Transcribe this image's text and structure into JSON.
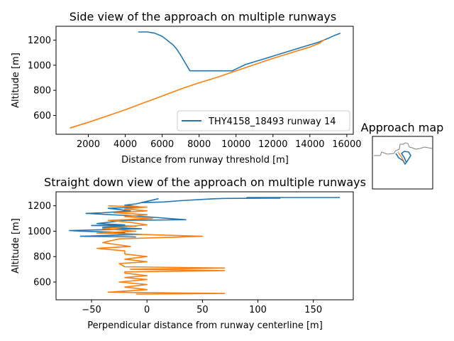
{
  "colors": {
    "series1": "#1f77b4",
    "series2": "#ff7f0e",
    "map_outline": "#7f7f7f"
  },
  "chart_data": [
    {
      "type": "line",
      "title": "Side view of the approach on multiple runways",
      "xlabel": "Distance from runway threshold [m]",
      "ylabel": "Altitude [m]",
      "xlim": [
        250,
        16350
      ],
      "ylim": [
        450,
        1310
      ],
      "xticks": [
        2000,
        4000,
        6000,
        8000,
        10000,
        12000,
        14000,
        16000
      ],
      "yticks": [
        600,
        800,
        1000,
        1200
      ],
      "legend": {
        "placement": "lower-right",
        "entries": [
          "THY4158_18493 runway 14"
        ]
      },
      "series": [
        {
          "name": "THY4158_18493 runway 14",
          "x": [
            4700,
            5200,
            5600,
            6000,
            6300,
            6600,
            6800,
            7000,
            7200,
            7400,
            7500,
            8000,
            9000,
            9800,
            10500,
            11500,
            12500,
            13500,
            14500,
            15000,
            15300,
            15650
          ],
          "y": [
            1265,
            1265,
            1255,
            1230,
            1195,
            1160,
            1125,
            1080,
            1030,
            980,
            955,
            955,
            955,
            955,
            1005,
            1050,
            1095,
            1140,
            1185,
            1215,
            1235,
            1255
          ]
        },
        {
          "name": "",
          "x": [
            1000,
            2000,
            3000,
            4000,
            5000,
            6000,
            7000,
            8000,
            9000,
            10000,
            11000,
            12000,
            13000,
            14000,
            14500,
            14800
          ],
          "y": [
            500,
            545,
            595,
            645,
            700,
            755,
            810,
            860,
            905,
            955,
            1005,
            1055,
            1100,
            1145,
            1175,
            1205
          ]
        }
      ]
    },
    {
      "type": "line",
      "title": "Straight down view of the approach on multiple runways",
      "xlabel": "Perpendicular distance from runway centerline [m]",
      "ylabel": "Altitude [m]",
      "xlim": [
        -82,
        186
      ],
      "ylim": [
        460,
        1310
      ],
      "xticks": [
        -50,
        0,
        50,
        100,
        150
      ],
      "yticks": [
        600,
        800,
        1000,
        1200
      ],
      "series": [
        {
          "name": "THY4158_18493 runway 14",
          "x": [
            174,
            90,
            120,
            70,
            60,
            50,
            30,
            15,
            -5,
            10,
            -10,
            -20,
            -5,
            -35,
            -15,
            -40,
            -55,
            -10,
            35,
            -20,
            -30,
            -45,
            -20,
            -50,
            -10,
            -40,
            -5,
            -25,
            -70,
            -60,
            -20,
            -30,
            -5,
            -60,
            -10
          ],
          "y": [
            1265,
            1265,
            1260,
            1258,
            1255,
            1250,
            1240,
            1230,
            1225,
            1255,
            1215,
            1205,
            1190,
            1180,
            1160,
            1145,
            1140,
            1120,
            1090,
            1085,
            1075,
            1060,
            1050,
            1045,
            1040,
            1030,
            1020,
            1015,
            1005,
            1000,
            990,
            985,
            975,
            960,
            955
          ]
        },
        {
          "name": "",
          "x": [
            -35,
            0,
            -20,
            0,
            -30,
            0,
            -20,
            5,
            -35,
            -15,
            0,
            -40,
            -10,
            -45,
            50,
            -25,
            -40,
            -15,
            -45,
            -20,
            -20,
            0,
            -20,
            0,
            -25,
            -20,
            70,
            -15,
            70,
            -20,
            -20,
            0,
            -20,
            0,
            -25,
            0,
            -20,
            0,
            -35,
            70,
            -10
          ],
          "y": [
            1200,
            1190,
            1175,
            1160,
            1145,
            1130,
            1115,
            1100,
            1085,
            1070,
            1050,
            1020,
            1000,
            985,
            960,
            940,
            910,
            880,
            865,
            845,
            820,
            800,
            780,
            760,
            745,
            720,
            710,
            700,
            690,
            680,
            670,
            650,
            635,
            620,
            600,
            580,
            560,
            540,
            520,
            510,
            505
          ]
        }
      ]
    },
    {
      "type": "line",
      "title": "Approach map",
      "series": [
        {
          "name": "",
          "x": [
            0,
            1,
            2,
            3,
            4
          ],
          "y": [
            0,
            1,
            0,
            -1,
            0
          ]
        }
      ]
    }
  ]
}
